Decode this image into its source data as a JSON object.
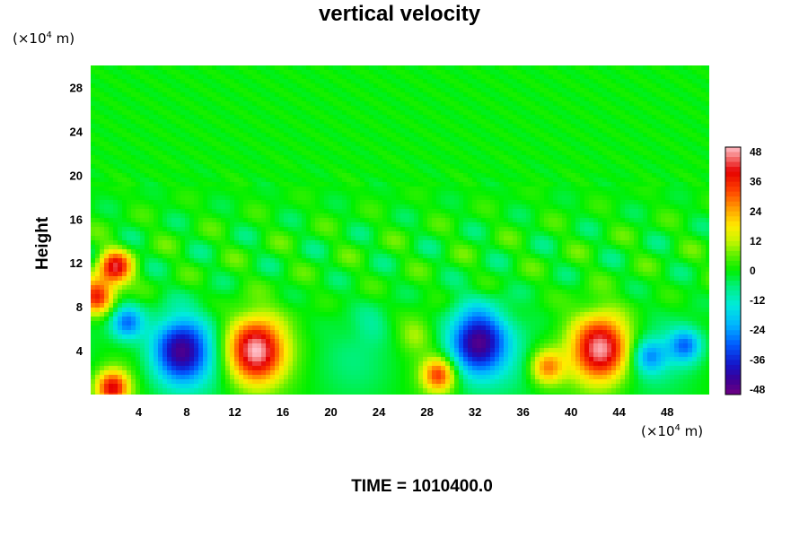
{
  "chart_data": {
    "type": "heatmap",
    "title": "vertical velocity",
    "ylabel": "Height",
    "y_unit_prefix": "(×10",
    "y_unit_exp": "4",
    "y_unit_suffix": " m)",
    "x_unit_prefix": "(×10",
    "x_unit_exp": "4",
    "x_unit_suffix": " m)",
    "xlim": [
      0,
      51.5
    ],
    "ylim": [
      0,
      30
    ],
    "x_ticks": [
      4,
      8,
      12,
      16,
      20,
      24,
      28,
      32,
      36,
      40,
      44,
      48
    ],
    "y_ticks": [
      4,
      8,
      12,
      16,
      20,
      24,
      28
    ],
    "colorbar": {
      "range": [
        -50,
        50
      ],
      "ticks": [
        48,
        36,
        24,
        12,
        0,
        -12,
        -24,
        -36,
        -48
      ]
    },
    "features": [
      {
        "x": 13.7,
        "y": 4.0,
        "value": 50
      },
      {
        "x": 42.5,
        "y": 4.2,
        "value": 48
      },
      {
        "x": 7.5,
        "y": 4.0,
        "value": -42
      },
      {
        "x": 32.2,
        "y": 4.8,
        "value": -44
      },
      {
        "x": 3.0,
        "y": 6.5,
        "value": -28
      },
      {
        "x": 49.5,
        "y": 4.5,
        "value": -26
      },
      {
        "x": 27.0,
        "y": 5.5,
        "value": 10
      },
      {
        "x": 38.0,
        "y": 2.5,
        "value": 28
      },
      {
        "x": 29.0,
        "y": 1.8,
        "value": 34
      },
      {
        "x": 2.0,
        "y": 11.5,
        "value": 38
      },
      {
        "x": 0.5,
        "y": 9.0,
        "value": 36
      },
      {
        "x": 1.8,
        "y": 0.6,
        "value": 40
      },
      {
        "x": 46.5,
        "y": 3.5,
        "value": -22
      },
      {
        "x": 23.5,
        "y": 6.5,
        "value": -6
      }
    ],
    "grid": false
  },
  "footer": {
    "time_label": "TIME =",
    "time_value": "1010400.0"
  }
}
